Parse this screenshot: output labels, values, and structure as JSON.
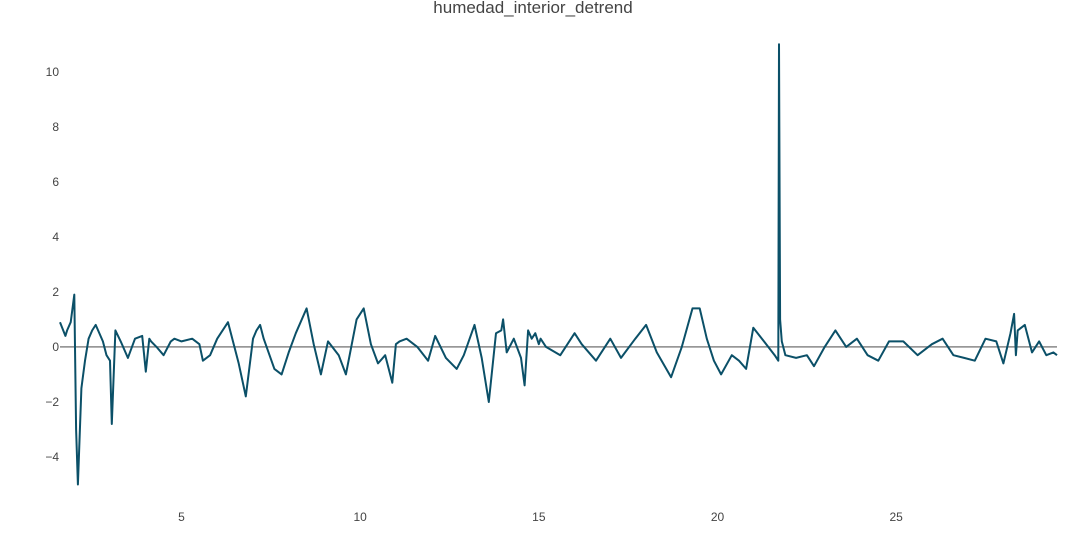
{
  "chart_data": {
    "type": "line",
    "title": "humedad_interior_detrend",
    "xlabel": "",
    "ylabel": "",
    "xlim": [
      1.6,
      29.5
    ],
    "ylim": [
      -5.2,
      11.3
    ],
    "xticks": [
      5,
      10,
      15,
      20,
      25
    ],
    "xtick_labels": [
      "5",
      "10",
      "15",
      "20",
      "25"
    ],
    "yticks": [
      -4,
      -2,
      0,
      2,
      4,
      6,
      8,
      10
    ],
    "ytick_labels": [
      "−4",
      "−2",
      "0",
      "2",
      "4",
      "6",
      "8",
      "10"
    ],
    "grid": false,
    "legend": "none",
    "zero_line": true,
    "colors": {
      "line": "#0b5068",
      "zero_line": "#888888",
      "text": "#444444",
      "background": "#ffffff"
    },
    "series": [
      {
        "values_x": [
          1.6,
          1.75,
          1.8,
          1.9,
          2.0,
          2.05,
          2.1,
          2.2,
          2.3,
          2.4,
          2.5,
          2.6,
          2.8,
          2.9,
          3.0,
          3.05,
          3.15,
          3.3,
          3.5,
          3.7,
          3.9,
          4.0,
          4.1,
          4.15,
          4.3,
          4.5,
          4.7,
          4.8,
          5.0,
          5.3,
          5.5,
          5.6,
          5.8,
          6.0,
          6.3,
          6.6,
          6.8,
          7.0,
          7.1,
          7.2,
          7.3,
          7.6,
          7.8,
          8.0,
          8.2,
          8.5,
          8.7,
          8.9,
          9.1,
          9.4,
          9.6,
          9.9,
          10.1,
          10.3,
          10.5,
          10.7,
          10.9,
          11.0,
          11.1,
          11.3,
          11.6,
          11.9,
          12.1,
          12.4,
          12.7,
          12.9,
          13.2,
          13.4,
          13.6,
          13.8,
          13.95,
          14.0,
          14.1,
          14.3,
          14.5,
          14.6,
          14.7,
          14.8,
          14.9,
          15.0,
          15.05,
          15.2,
          15.6,
          16.0,
          16.2,
          16.6,
          17.0,
          17.3,
          17.7,
          18.0,
          18.3,
          18.7,
          19.0,
          19.3,
          19.5,
          19.7,
          19.9,
          20.1,
          20.4,
          20.6,
          20.8,
          21.0,
          21.3,
          21.6,
          21.7,
          21.72,
          21.75,
          21.8,
          21.9,
          22.2,
          22.5,
          22.7,
          23.0,
          23.3,
          23.6,
          23.9,
          24.2,
          24.5,
          24.8,
          25.2,
          25.6,
          26.0,
          26.3,
          26.6,
          26.9,
          27.2,
          27.5,
          27.8,
          28.0,
          28.2,
          28.3,
          28.35,
          28.4,
          28.6,
          28.8,
          29.0,
          29.2,
          29.4,
          29.5
        ],
        "values_y": [
          0.9,
          0.4,
          0.6,
          0.9,
          1.9,
          -3.0,
          -5.0,
          -1.5,
          -0.5,
          0.3,
          0.6,
          0.8,
          0.2,
          -0.3,
          -0.5,
          -2.8,
          0.6,
          0.2,
          -0.4,
          0.3,
          0.4,
          -0.9,
          0.3,
          0.2,
          0.0,
          -0.3,
          0.2,
          0.3,
          0.2,
          0.3,
          0.1,
          -0.5,
          -0.3,
          0.3,
          0.9,
          -0.6,
          -1.8,
          0.3,
          0.6,
          0.8,
          0.3,
          -0.8,
          -1.0,
          -0.2,
          0.5,
          1.4,
          0.1,
          -1.0,
          0.2,
          -0.3,
          -1.0,
          1.0,
          1.4,
          0.1,
          -0.6,
          -0.3,
          -1.3,
          0.1,
          0.2,
          0.3,
          0.0,
          -0.5,
          0.4,
          -0.4,
          -0.8,
          -0.3,
          0.8,
          -0.4,
          -2.0,
          0.5,
          0.6,
          1.0,
          -0.2,
          0.3,
          -0.4,
          -1.4,
          0.6,
          0.3,
          0.5,
          0.1,
          0.3,
          0.0,
          -0.3,
          0.5,
          0.1,
          -0.5,
          0.3,
          -0.4,
          0.3,
          0.8,
          -0.2,
          -1.1,
          0.0,
          1.4,
          1.4,
          0.3,
          -0.5,
          -1.0,
          -0.3,
          -0.5,
          -0.8,
          0.7,
          0.2,
          -0.3,
          -0.5,
          11.0,
          1.0,
          0.2,
          -0.3,
          -0.4,
          -0.3,
          -0.7,
          0.0,
          0.6,
          0.0,
          0.3,
          -0.3,
          -0.5,
          0.2,
          0.2,
          -0.3,
          0.1,
          0.3,
          -0.3,
          -0.4,
          -0.5,
          0.3,
          0.2,
          -0.6,
          0.5,
          1.2,
          -0.3,
          0.6,
          0.8,
          -0.2,
          0.2,
          -0.3,
          -0.2,
          -0.3
        ]
      }
    ]
  }
}
